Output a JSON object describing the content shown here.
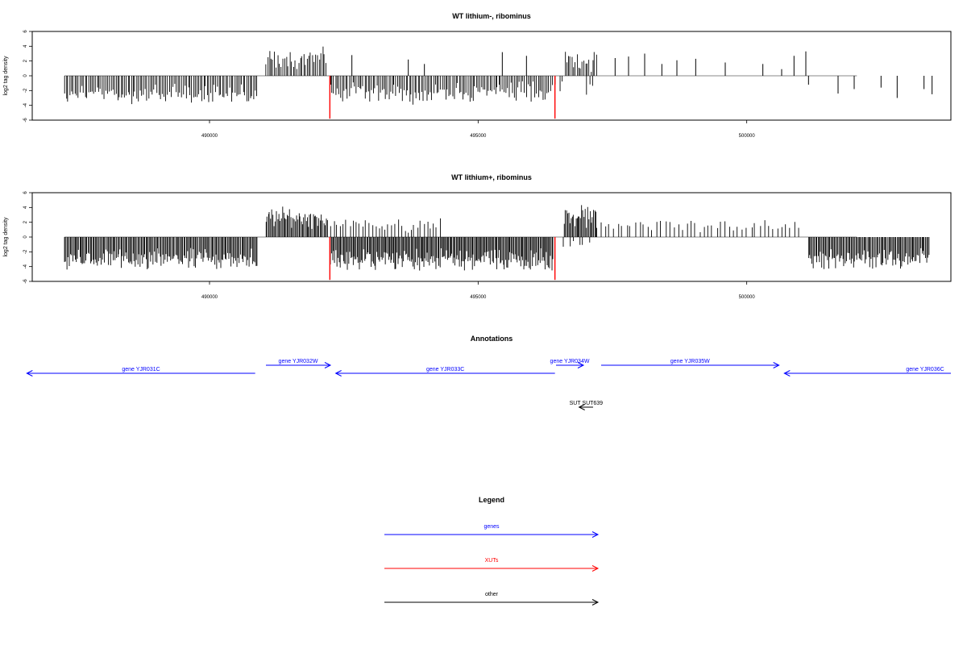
{
  "chart_data": [
    {
      "type": "bar",
      "title": "WT lithium-, ribominus",
      "xlabel": "",
      "ylabel": "log2 tag density",
      "xlim": [
        486700,
        503800
      ],
      "ylim": [
        -6,
        6
      ],
      "x_ticks": [
        490000,
        495000,
        500000
      ],
      "x_tick_labels": [
        "490000",
        "495000",
        "500000"
      ],
      "y_ticks": [
        -6,
        -4,
        -2,
        0,
        2,
        4,
        6
      ],
      "y_tick_labels": [
        "-6",
        "-4",
        "-2",
        "0",
        "2",
        "4",
        "6"
      ],
      "baseline_range": [
        487300,
        502050
      ],
      "bar_color": "#000000",
      "highlight_color": "#ff0000",
      "highlights": [
        {
          "x": 492240,
          "y": -5.8
        },
        {
          "x": 496430,
          "y": -5.8
        }
      ],
      "series": [
        {
          "strand": "minus",
          "x_range": [
            487300,
            490900
          ],
          "mean": 2.5,
          "spread": 1.4,
          "step": 32,
          "max": 4.6
        },
        {
          "strand": "plus",
          "x_range": [
            491050,
            492200
          ],
          "mean": 2.4,
          "spread": 1.4,
          "step": 32,
          "max": 4.5
        },
        {
          "strand": "minus",
          "x_range": [
            492250,
            496400
          ],
          "mean": 2.3,
          "spread": 1.4,
          "step": 32,
          "max": 4.3
        },
        {
          "strand": "minus",
          "x_range": [
            496450,
            496600
          ],
          "mean": 1.4,
          "spread": 0.8,
          "step": 60,
          "max": 2.5
        },
        {
          "strand": "plus",
          "x_range": [
            496620,
            497200
          ],
          "mean": 2.0,
          "spread": 1.3,
          "step": 32,
          "max": 4.5
        },
        {
          "strand": "minus",
          "x_range": [
            497000,
            497200
          ],
          "mean": 1.8,
          "spread": 1.2,
          "step": 70,
          "max": 3.5
        }
      ],
      "points": [
        {
          "x": 492650,
          "y": 2.8
        },
        {
          "x": 493700,
          "y": 2.2
        },
        {
          "x": 494000,
          "y": 1.6
        },
        {
          "x": 495450,
          "y": 3.2
        },
        {
          "x": 495900,
          "y": 2.7
        },
        {
          "x": 497550,
          "y": 2.4
        },
        {
          "x": 497800,
          "y": 2.6
        },
        {
          "x": 498100,
          "y": 3.0
        },
        {
          "x": 498420,
          "y": 1.6
        },
        {
          "x": 498700,
          "y": 2.1
        },
        {
          "x": 499050,
          "y": 2.3
        },
        {
          "x": 499600,
          "y": 1.8
        },
        {
          "x": 500300,
          "y": 1.6
        },
        {
          "x": 500650,
          "y": 0.9
        },
        {
          "x": 500880,
          "y": 2.7
        },
        {
          "x": 501100,
          "y": 3.3
        },
        {
          "x": 501150,
          "y": -1.2
        },
        {
          "x": 501700,
          "y": -2.4
        },
        {
          "x": 502000,
          "y": -1.8
        },
        {
          "x": 502500,
          "y": -1.6
        },
        {
          "x": 502800,
          "y": -3.0
        },
        {
          "x": 503300,
          "y": -1.8
        },
        {
          "x": 503450,
          "y": -2.5
        }
      ]
    },
    {
      "type": "bar",
      "title": "WT lithium+, ribominus",
      "xlabel": "",
      "ylabel": "log2 tag density",
      "xlim": [
        486700,
        503800
      ],
      "ylim": [
        -6,
        6
      ],
      "x_ticks": [
        490000,
        495000,
        500000
      ],
      "x_tick_labels": [
        "490000",
        "495000",
        "500000"
      ],
      "y_ticks": [
        -6,
        -4,
        -2,
        0,
        2,
        4,
        6
      ],
      "y_tick_labels": [
        "-6",
        "-4",
        "-2",
        "0",
        "2",
        "4",
        "6"
      ],
      "baseline_range": [
        487300,
        502050
      ],
      "bar_color": "#000000",
      "highlight_color": "#ff0000",
      "highlights": [
        {
          "x": 492240,
          "y": -5.8
        },
        {
          "x": 496430,
          "y": -5.8
        }
      ],
      "series": [
        {
          "strand": "minus",
          "x_range": [
            487300,
            490900
          ],
          "mean": 3.0,
          "spread": 1.4,
          "step": 22,
          "max": 5.6
        },
        {
          "strand": "plus",
          "x_range": [
            491050,
            492200
          ],
          "mean": 2.6,
          "spread": 1.4,
          "step": 22,
          "max": 5.5
        },
        {
          "strand": "minus",
          "x_range": [
            492250,
            496400
          ],
          "mean": 3.1,
          "spread": 1.4,
          "step": 20,
          "max": 5.8
        },
        {
          "strand": "plus",
          "x_range": [
            492250,
            494300
          ],
          "mean": 1.7,
          "spread": 1.0,
          "step": 60,
          "max": 3.3
        },
        {
          "strand": "plus",
          "x_range": [
            496600,
            497200
          ],
          "mean": 2.6,
          "spread": 1.5,
          "step": 22,
          "max": 5.6
        },
        {
          "strand": "minus",
          "x_range": [
            496600,
            497100
          ],
          "mean": 1.2,
          "spread": 1.0,
          "step": 90,
          "max": 3.7
        },
        {
          "strand": "plus",
          "x_range": [
            497200,
            501000
          ],
          "mean": 1.5,
          "spread": 0.9,
          "step": 80,
          "max": 4.1
        },
        {
          "strand": "minus",
          "x_range": [
            501150,
            503400
          ],
          "mean": 2.9,
          "spread": 1.3,
          "step": 22,
          "max": 5.4
        }
      ],
      "points": []
    }
  ],
  "annotations": {
    "title": "Annotations",
    "items": [
      {
        "label": "gene YJR031C",
        "x_from": 490850,
        "x_to": 486600,
        "kind": "genes"
      },
      {
        "label": "gene YJR032W",
        "x_from": 491050,
        "x_to": 492250,
        "kind": "genes"
      },
      {
        "label": "gene YJR033C",
        "x_from": 496430,
        "x_to": 492350,
        "kind": "genes"
      },
      {
        "label": "gene YJR034W",
        "x_from": 496450,
        "x_to": 496960,
        "kind": "genes"
      },
      {
        "label": "gene YJR035W",
        "x_from": 497290,
        "x_to": 500600,
        "kind": "genes"
      },
      {
        "label": "gene YJR036C",
        "x_from": 503800,
        "x_to": 500700,
        "kind": "genes"
      },
      {
        "label": "SUT SUT639",
        "x_from": 497140,
        "x_to": 496880,
        "kind": "other"
      }
    ]
  },
  "legend": {
    "title": "Legend",
    "items": [
      {
        "label": "genes",
        "color": "#0000ff"
      },
      {
        "label": "XUTs",
        "color": "#ff0000"
      },
      {
        "label": "other",
        "color": "#000000"
      }
    ]
  },
  "colors": {
    "genes": "#0000ff",
    "XUTs": "#ff0000",
    "other": "#000000",
    "baseline": "#888888"
  }
}
